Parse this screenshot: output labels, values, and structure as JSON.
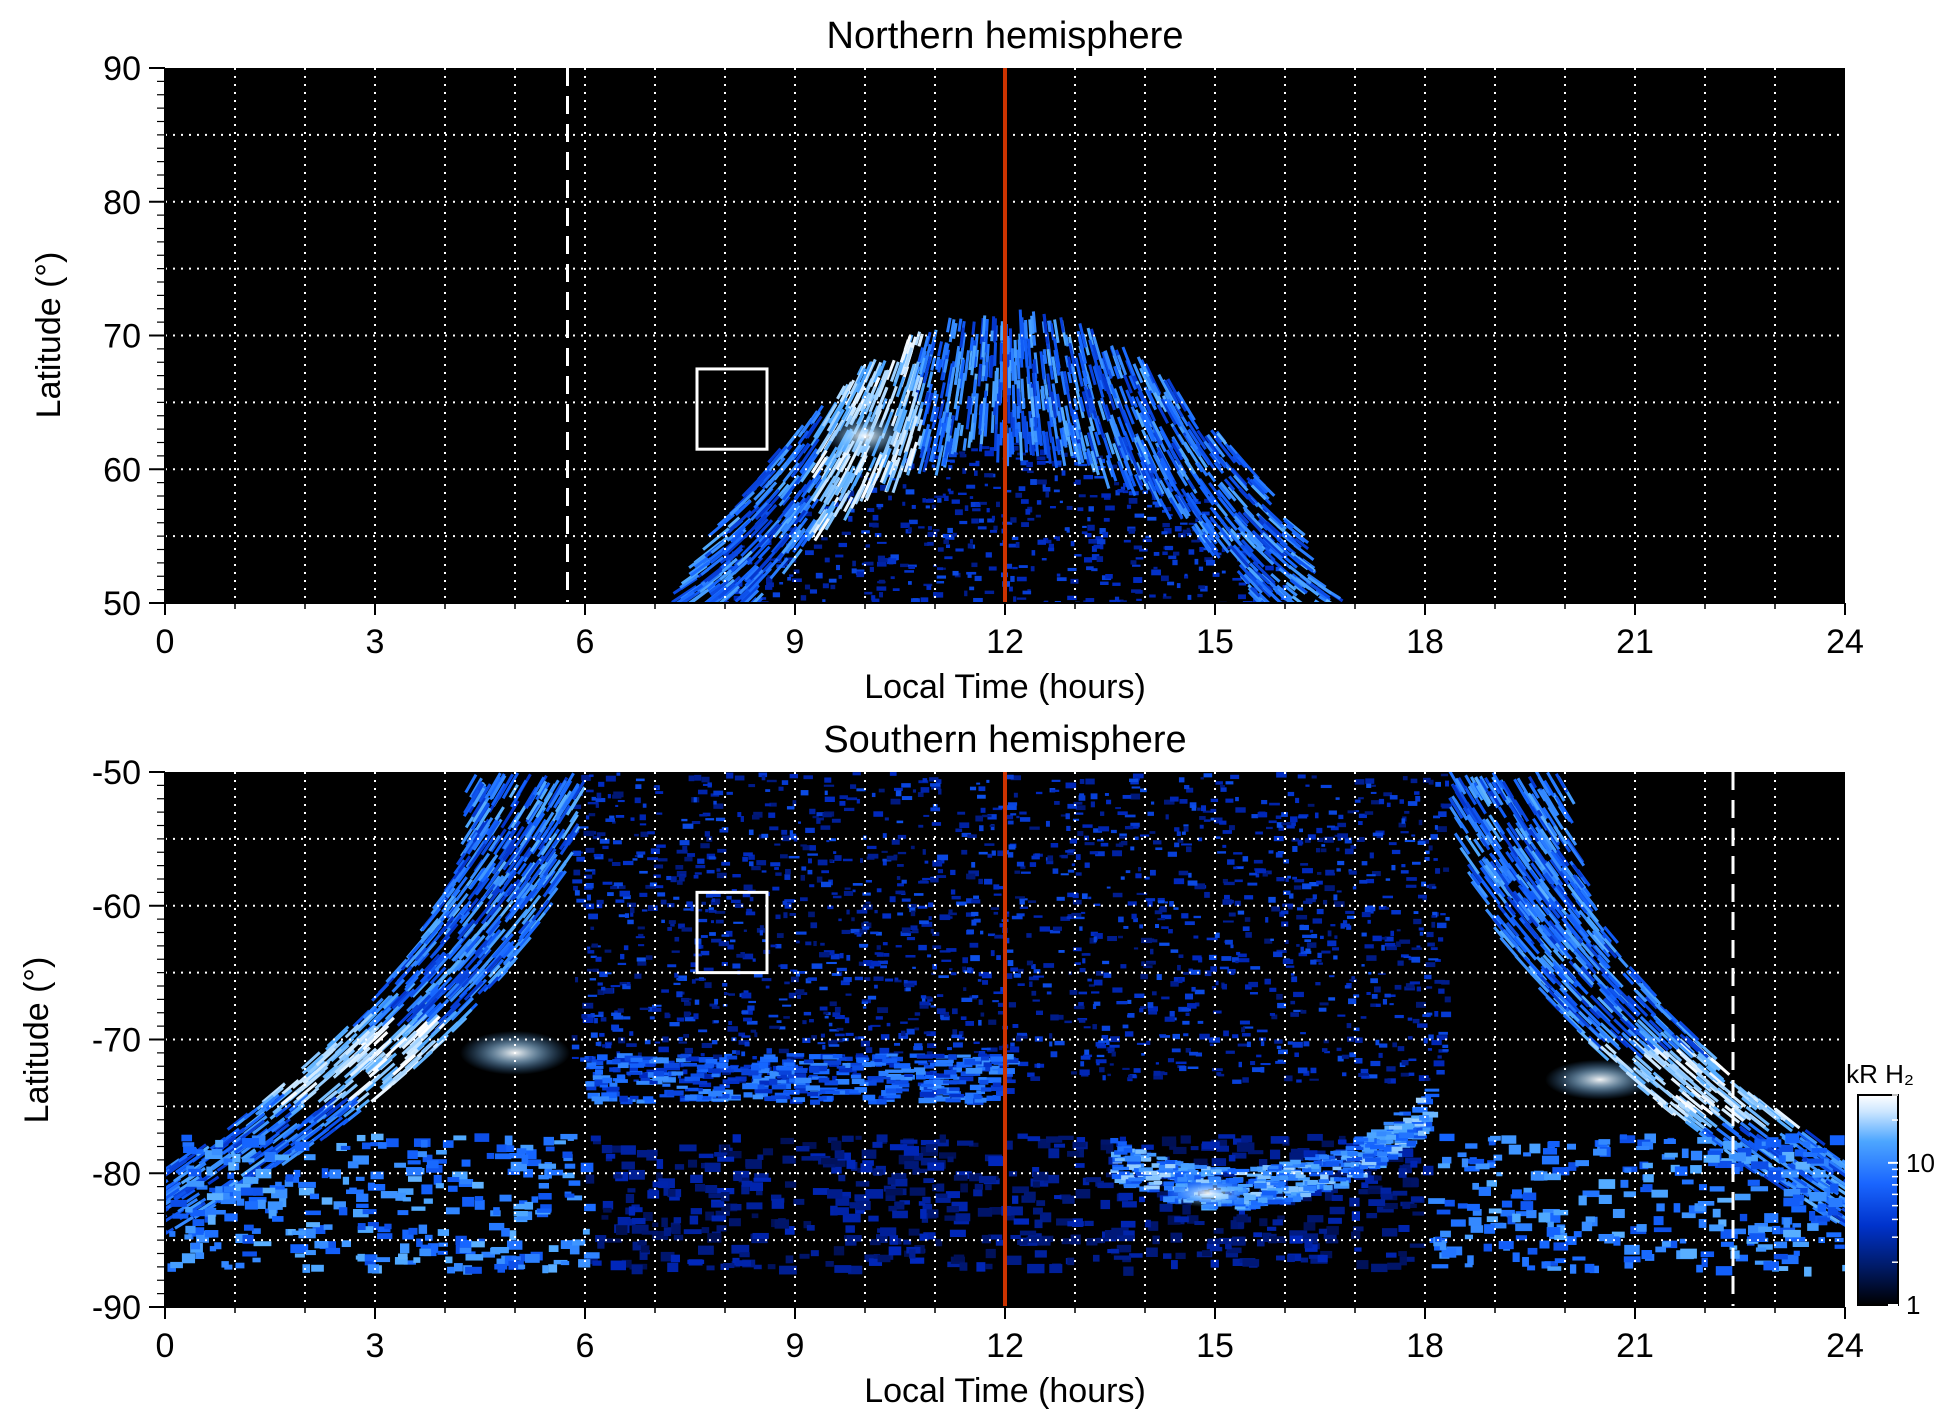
{
  "chart_data": [
    {
      "type": "heatmap",
      "title": "Northern hemisphere",
      "xlabel": "Local Time (hours)",
      "ylabel": "Latitude (°)",
      "xlim": [
        0,
        24
      ],
      "ylim": [
        50,
        90
      ],
      "x_ticks": [
        0,
        3,
        6,
        9,
        12,
        15,
        18,
        21,
        24
      ],
      "y_ticks": [
        50,
        60,
        70,
        80,
        90
      ],
      "x_grid_step": 1,
      "y_grid_step": 5,
      "grid": true,
      "background": "#000000",
      "aurora_oval": {
        "center_lt": 12.0,
        "peak_lat": 72.0,
        "inner_lat_at_noon": 62.5,
        "lt_extent_at_50": [
          7.5,
          16.8
        ],
        "brightest_lt": 10.0
      },
      "noon_line": {
        "x": 12,
        "color": "#cc3300"
      },
      "dashed_line": {
        "x": 5.75,
        "y_range": [
          50,
          90
        ]
      },
      "box": {
        "x0": 7.6,
        "x1": 8.6,
        "y0": 61.5,
        "y1": 67.5
      }
    },
    {
      "type": "heatmap",
      "title": "Southern hemisphere",
      "xlabel": "Local Time (hours)",
      "ylabel": "Latitude (°)",
      "xlim": [
        0,
        24
      ],
      "ylim": [
        -90,
        -50
      ],
      "x_ticks": [
        0,
        3,
        6,
        9,
        12,
        15,
        18,
        21,
        24
      ],
      "y_ticks": [
        -90,
        -80,
        -70,
        -60,
        -50
      ],
      "x_grid_step": 1,
      "y_grid_step": 5,
      "grid": true,
      "background": "#000000",
      "aurora_oval": {
        "left_band_lt_at_-50": 6.0,
        "right_band_lt_at_-50": 18.3,
        "band_min_lat": -82,
        "brightest_lt": [
          5.0,
          20.5,
          15.0
        ]
      },
      "noon_line": {
        "x": 12,
        "color": "#cc3300"
      },
      "dashed_line": {
        "x": 22.4,
        "y_range": [
          -90,
          -50
        ]
      },
      "box": {
        "x0": 7.6,
        "x1": 8.6,
        "y0": -65,
        "y1": -59
      }
    }
  ],
  "colorbar": {
    "label": "kR H₂",
    "ticks": [
      {
        "value": 1,
        "label": "1"
      },
      {
        "value": 10,
        "label": "10"
      }
    ],
    "range": [
      1,
      30
    ],
    "scale": "log",
    "colors": [
      "#000000",
      "#001a66",
      "#0033cc",
      "#1a66ff",
      "#4da6ff",
      "#cce6ff",
      "#ffffff"
    ]
  }
}
